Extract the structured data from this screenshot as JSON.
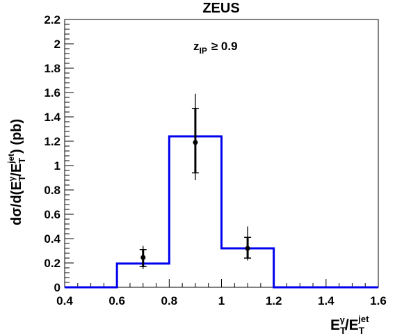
{
  "chart_data": {
    "type": "histogram",
    "title": "ZEUS",
    "annotation": {
      "main": "z",
      "sub": "IP",
      "rel": "≥ 0.9"
    },
    "xlabel": {
      "base": "E",
      "sub1": "T",
      "sup1": "γ",
      "slash": "/",
      "sub2": "T",
      "sup2": "jet"
    },
    "ylabel": {
      "pre": "dσ/d(E",
      "sub1": "T",
      "sup1": "γ",
      "slash": "/E",
      "sub2": "T",
      "sup2": "jet",
      "post": ") (pb)"
    },
    "xlim": [
      0.4,
      1.6
    ],
    "ylim": [
      0,
      2.2
    ],
    "x_ticks": [
      "0.4",
      "0.6",
      "0.8",
      "1",
      "1.2",
      "1.4",
      "1.6"
    ],
    "y_ticks": [
      "0",
      "0.2",
      "0.4",
      "0.6",
      "0.8",
      "1",
      "1.2",
      "1.4",
      "1.6",
      "1.8",
      "2",
      "2.2"
    ],
    "x_tick_values": [
      0.4,
      0.6,
      0.8,
      1.0,
      1.2,
      1.4,
      1.6
    ],
    "y_tick_values": [
      0,
      0.2,
      0.4,
      0.6,
      0.8,
      1.0,
      1.2,
      1.4,
      1.6,
      1.8,
      2.0,
      2.2
    ],
    "histogram": {
      "color": "#0000ee",
      "bins": [
        {
          "low": 0.4,
          "high": 0.6,
          "value": 0.0
        },
        {
          "low": 0.6,
          "high": 0.8,
          "value": 0.195
        },
        {
          "low": 0.8,
          "high": 1.0,
          "value": 1.24
        },
        {
          "low": 1.0,
          "high": 1.2,
          "value": 0.32
        },
        {
          "low": 1.2,
          "high": 1.6,
          "value": 0.0
        }
      ]
    },
    "points": [
      {
        "x": 0.7,
        "y": 0.245,
        "stat_lo": 0.17,
        "stat_hi": 0.31,
        "tot_lo": 0.15,
        "tot_hi": 0.34
      },
      {
        "x": 0.9,
        "y": 1.19,
        "stat_lo": 0.94,
        "stat_hi": 1.47,
        "tot_lo": 0.88,
        "tot_hi": 1.59
      },
      {
        "x": 1.1,
        "y": 0.32,
        "stat_lo": 0.24,
        "stat_hi": 0.41,
        "tot_lo": 0.22,
        "tot_hi": 0.5
      }
    ],
    "grid": false,
    "legend": false
  }
}
